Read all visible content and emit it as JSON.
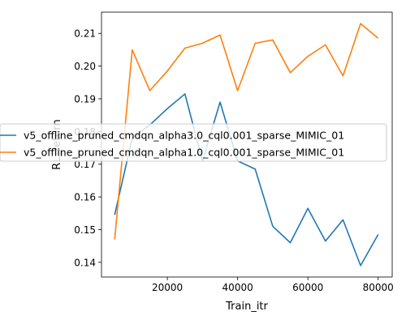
{
  "chart_data": {
    "type": "line",
    "title": "",
    "xlabel": "Train_itr",
    "ylabel": "RL_return",
    "xlim": [
      1250,
      84000
    ],
    "ylim": [
      0.1355,
      0.2165
    ],
    "x_ticks": [
      20000,
      40000,
      60000,
      80000
    ],
    "x_tick_labels": [
      "20000",
      "40000",
      "60000",
      "80000"
    ],
    "y_ticks": [
      0.14,
      0.15,
      0.16,
      0.17,
      0.18,
      0.19,
      0.2,
      0.21
    ],
    "y_tick_labels": [
      "0.14",
      "0.15",
      "0.16",
      "0.17",
      "0.18",
      "0.19",
      "0.20",
      "0.21"
    ],
    "grid": false,
    "legend_position": "center-left",
    "x": [
      5000,
      10000,
      15000,
      20000,
      25000,
      30000,
      35000,
      40000,
      45000,
      50000,
      55000,
      60000,
      65000,
      70000,
      75000,
      80000
    ],
    "series": [
      {
        "name": "v5_offline_pruned_cmdqn_alpha3.0_cql0.001_sparse_MIMIC_01",
        "color": "#1f77b4",
        "values": [
          0.1545,
          0.178,
          0.182,
          0.187,
          0.1915,
          0.171,
          0.189,
          0.171,
          0.1685,
          0.151,
          0.146,
          0.1565,
          0.1465,
          0.153,
          0.139,
          0.1485
        ]
      },
      {
        "name": "v5_offline_pruned_cmdqn_alpha1.0_cql0.001_sparse_MIMIC_01",
        "color": "#ff7f0e",
        "values": [
          0.147,
          0.205,
          0.1925,
          0.1985,
          0.2055,
          0.207,
          0.2095,
          0.1925,
          0.207,
          0.208,
          0.198,
          0.203,
          0.2065,
          0.197,
          0.213,
          0.2085
        ]
      }
    ]
  }
}
